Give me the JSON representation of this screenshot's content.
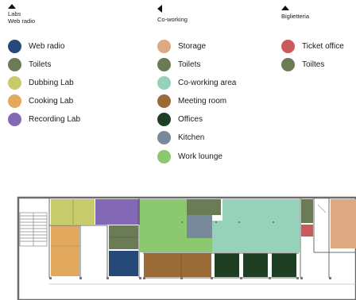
{
  "colors": {
    "web_radio": "#264a78",
    "toilets": "#6b7b56",
    "dubbing_lab": "#c6cb6b",
    "cooking_lab": "#e2a85e",
    "recording_lab": "#8369b5",
    "storage": "#dca983",
    "coworking_area": "#96d2b9",
    "meeting_room": "#9a6b37",
    "offices": "#1f3f24",
    "kitchen": "#77899a",
    "work_lounge": "#8cc86f",
    "ticket_office": "#cd5a5a",
    "wall": "#6b6b6b",
    "stair": "#888888"
  },
  "legend": {
    "labs": {
      "arrow": "up",
      "title_line1": "Labs",
      "title_line2": "Web radio",
      "items": [
        {
          "label": "Web radio",
          "color": "#264a78"
        },
        {
          "label": "Toilets",
          "color": "#6b7b56"
        },
        {
          "label": "Dubbing Lab",
          "color": "#c6cb6b"
        },
        {
          "label": "Cooking Lab",
          "color": "#e2a85e"
        },
        {
          "label": "Recording Lab",
          "color": "#8369b5"
        }
      ]
    },
    "coworking": {
      "arrow": "left",
      "title": "Co-working",
      "items": [
        {
          "label": "Storage",
          "color": "#dca983"
        },
        {
          "label": "Toilets",
          "color": "#6b7b56"
        },
        {
          "label": "Co-working area",
          "color": "#96d2b9"
        },
        {
          "label": "Meeting room",
          "color": "#9a6b37"
        },
        {
          "label": "Offices",
          "color": "#1f3f24"
        },
        {
          "label": "Kitchen",
          "color": "#77899a"
        },
        {
          "label": "Work lounge",
          "color": "#8cc86f"
        }
      ]
    },
    "biglietteria": {
      "arrow": "up",
      "title": "Biglietteria",
      "items": [
        {
          "label": "Ticket office",
          "color": "#cd5a5a"
        },
        {
          "label": "Toiltes",
          "color": "#6b7b56"
        }
      ]
    }
  }
}
